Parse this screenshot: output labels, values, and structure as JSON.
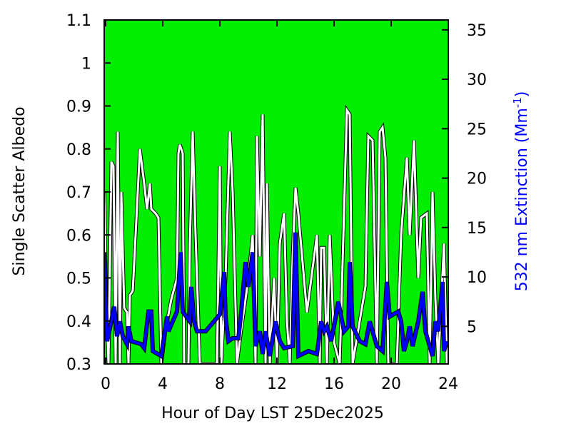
{
  "chart_data": {
    "type": "line",
    "title": "",
    "xlabel": "Hour of Day LST 25Dec2025",
    "ylabel": "Single Scatter Albedo",
    "y2label": "532 nm Extinction (Mm",
    "y2label_sup": "-1",
    "y2label_end": ")",
    "xlim": [
      -0.1,
      24
    ],
    "ylim": [
      0.3,
      1.1
    ],
    "y2lim": [
      1.2,
      36
    ],
    "xticks": [
      0,
      4,
      8,
      12,
      16,
      20,
      24
    ],
    "yticks": [
      0.3,
      0.4,
      0.5,
      0.6,
      0.7,
      0.8,
      0.9,
      1,
      1.1
    ],
    "y2ticks": [
      5,
      10,
      15,
      20,
      25,
      30,
      35
    ],
    "grid": false,
    "colors": {
      "background": "#00ee00",
      "ssa": "#ffffff",
      "extinction": "#0000ff",
      "ylabel2": "#0000ff"
    },
    "series": [
      {
        "axis": "left",
        "x": [
          -0.1,
          0.05,
          0.2,
          0.4,
          0.55,
          0.7,
          0.85,
          1.0,
          1.1,
          1.3,
          1.5,
          1.6,
          1.7,
          1.9,
          2.1,
          2.4,
          2.7,
          2.9,
          3.1,
          3.2,
          3.5,
          3.7,
          3.9,
          4.2,
          4.6,
          5.0,
          5.1,
          5.2,
          5.4,
          5.5,
          5.8,
          5.9,
          6.1,
          6.3,
          6.6,
          7.0,
          7.5,
          7.8,
          8.0,
          8.1,
          8.4,
          8.7,
          8.9,
          9.2,
          9.5,
          9.8,
          10.0,
          10.3,
          10.5,
          10.6,
          10.8,
          11.0,
          11.2,
          11.3,
          11.5,
          11.8,
          12.0,
          12.2,
          12.5,
          12.7,
          12.9,
          13.1,
          13.3,
          13.5,
          14.1,
          14.8,
          15.0,
          15.1,
          15.3,
          15.5,
          15.7,
          16.0,
          16.4,
          16.9,
          17.1,
          17.3,
          17.8,
          18.2,
          18.4,
          18.7,
          19.0,
          19.2,
          19.4,
          19.6,
          19.8,
          20.4,
          20.7,
          21.1,
          21.3,
          21.6,
          21.9,
          22.1,
          22.5,
          22.7,
          22.9,
          23.1,
          23.3,
          23.7,
          23.9
        ],
        "y": [
          0.7,
          0.45,
          0.3,
          0.77,
          0.76,
          0.3,
          0.84,
          0.3,
          0.7,
          0.43,
          0.42,
          0.3,
          0.46,
          0.47,
          0.6,
          0.8,
          0.72,
          0.66,
          0.72,
          0.66,
          0.65,
          0.64,
          0.3,
          0.38,
          0.45,
          0.5,
          0.79,
          0.81,
          0.79,
          0.3,
          0.3,
          0.58,
          0.84,
          0.6,
          0.3,
          0.3,
          0.3,
          0.3,
          0.76,
          0.3,
          0.5,
          0.84,
          0.7,
          0.3,
          0.38,
          0.45,
          0.5,
          0.6,
          0.3,
          0.83,
          0.55,
          0.88,
          0.3,
          0.72,
          0.3,
          0.5,
          0.3,
          0.58,
          0.65,
          0.4,
          0.3,
          0.55,
          0.71,
          0.65,
          0.42,
          0.6,
          0.3,
          0.57,
          0.57,
          0.3,
          0.6,
          0.35,
          0.3,
          0.89,
          0.88,
          0.3,
          0.4,
          0.48,
          0.83,
          0.82,
          0.3,
          0.84,
          0.85,
          0.78,
          0.3,
          0.3,
          0.6,
          0.78,
          0.6,
          0.82,
          0.5,
          0.64,
          0.65,
          0.3,
          0.7,
          0.45,
          0.3,
          0.58,
          0.3
        ]
      },
      {
        "axis": "right",
        "x": [
          -0.1,
          0.1,
          0.4,
          0.6,
          0.8,
          1.0,
          1.2,
          1.5,
          1.6,
          1.8,
          2.5,
          2.7,
          3.0,
          3.2,
          3.3,
          3.9,
          4.1,
          4.3,
          4.4,
          5.0,
          5.25,
          5.4,
          5.9,
          6.0,
          6.2,
          6.4,
          7.0,
          8.0,
          8.3,
          8.4,
          8.6,
          8.9,
          9.3,
          9.5,
          9.8,
          10.0,
          10.3,
          10.5,
          10.8,
          11.0,
          11.2,
          11.5,
          11.9,
          12.2,
          12.5,
          13.1,
          13.3,
          13.5,
          14.2,
          14.8,
          15.1,
          15.3,
          15.5,
          15.8,
          16.0,
          16.3,
          16.7,
          17.0,
          17.1,
          17.3,
          17.8,
          18.2,
          18.5,
          19.0,
          19.4,
          19.7,
          19.9,
          20.5,
          20.7,
          20.9,
          21.1,
          21.3,
          21.5,
          21.9,
          22.2,
          22.4,
          22.9,
          23.1,
          23.3,
          23.6,
          23.7,
          23.9
        ],
        "y": [
          12.5,
          3.5,
          5.5,
          7.0,
          4.0,
          5.5,
          4.0,
          3.2,
          5.0,
          3.5,
          3.2,
          2.8,
          6.5,
          6.5,
          2.5,
          2.0,
          4.0,
          6.0,
          4.5,
          6.5,
          12.5,
          6.5,
          5.5,
          9.0,
          5.5,
          4.5,
          4.5,
          6.2,
          10.5,
          6.0,
          3.5,
          3.8,
          3.8,
          6.5,
          11.5,
          9.0,
          12.5,
          3.0,
          4.5,
          2.2,
          4.5,
          2.0,
          5.5,
          3.5,
          2.8,
          3.0,
          14.5,
          2.0,
          2.5,
          2.2,
          5.5,
          4.5,
          5.0,
          3.5,
          5.0,
          7.5,
          4.5,
          5.0,
          11.5,
          5.0,
          3.5,
          3.2,
          5.5,
          3.0,
          2.5,
          9.5,
          6.0,
          6.5,
          5.5,
          2.5,
          3.5,
          5.0,
          3.0,
          5.5,
          8.5,
          4.5,
          2.0,
          5.5,
          4.5,
          9.5,
          2.5,
          3.5
        ]
      }
    ]
  }
}
